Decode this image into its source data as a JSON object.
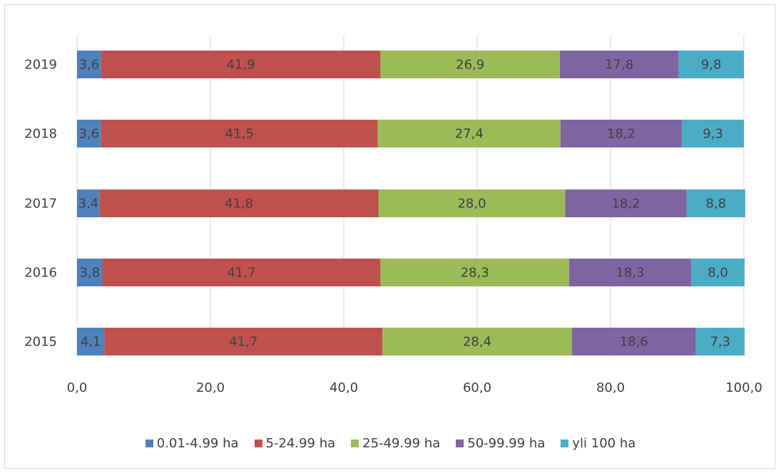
{
  "chart_data": {
    "type": "bar",
    "orientation": "horizontal",
    "stacked": true,
    "categories": [
      "2019",
      "2018",
      "2017",
      "2016",
      "2015"
    ],
    "series": [
      {
        "name": "0.01-4.99 ha",
        "color": "#4f81bd",
        "values": [
          3.6,
          3.6,
          3.4,
          3.8,
          4.1
        ],
        "labels": [
          "3,6",
          "3,6",
          "3,4",
          "3,8",
          "4,1"
        ]
      },
      {
        "name": "5-24.99 ha",
        "color": "#c0504d",
        "values": [
          41.9,
          41.5,
          41.8,
          41.7,
          41.7
        ],
        "labels": [
          "41,9",
          "41,5",
          "41,8",
          "41,7",
          "41,7"
        ]
      },
      {
        "name": "25-49.99 ha",
        "color": "#9bbb59",
        "values": [
          26.9,
          27.4,
          28.0,
          28.3,
          28.4
        ],
        "labels": [
          "26,9",
          "27,4",
          "28,0",
          "28,3",
          "28,4"
        ]
      },
      {
        "name": "50-99.99 ha",
        "color": "#8064a2",
        "values": [
          17.8,
          18.2,
          18.2,
          18.3,
          18.6
        ],
        "labels": [
          "17,8",
          "18,2",
          "18,2",
          "18,3",
          "18,6"
        ]
      },
      {
        "name": "yli 100 ha",
        "color": "#4bacc6",
        "values": [
          9.8,
          9.3,
          8.8,
          8.0,
          7.3
        ],
        "labels": [
          "9,8",
          "9,3",
          "8,8",
          "8,0",
          "7,3"
        ]
      }
    ],
    "xlim": [
      0,
      100
    ],
    "xticks": [
      0,
      20,
      40,
      60,
      80,
      100
    ],
    "xtick_labels": [
      "0,0",
      "20,0",
      "40,0",
      "60,0",
      "80,0",
      "100,0"
    ],
    "grid": "vertical",
    "legend": "bottom"
  }
}
